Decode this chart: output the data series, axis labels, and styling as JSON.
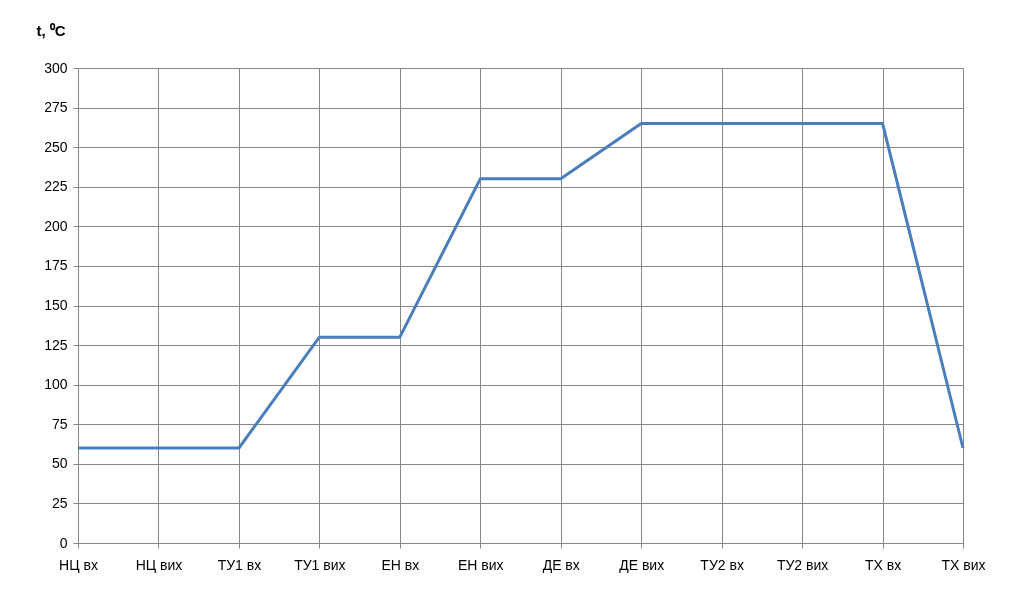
{
  "chart_data": {
    "type": "line",
    "ylabel": "t, ⁰C",
    "categories": [
      "НЦ вх",
      "НЦ вих",
      "ТУ1 вх",
      "ТУ1 вих",
      "ЕН вх",
      "ЕН вих",
      "ДЕ вх",
      "ДЕ вих",
      "ТУ2 вх",
      "ТУ2 вих",
      "ТХ вх",
      "ТХ вих"
    ],
    "series": [
      {
        "color": "#4a7ebb",
        "values": [
          60,
          60,
          60,
          130,
          130,
          230,
          230,
          265,
          265,
          265,
          265,
          60
        ]
      }
    ],
    "ylim": [
      0,
      300
    ],
    "yticks": [
      0,
      25,
      50,
      75,
      100,
      125,
      150,
      175,
      200,
      225,
      250,
      275,
      300
    ],
    "grid": true,
    "line_style": "solid"
  }
}
